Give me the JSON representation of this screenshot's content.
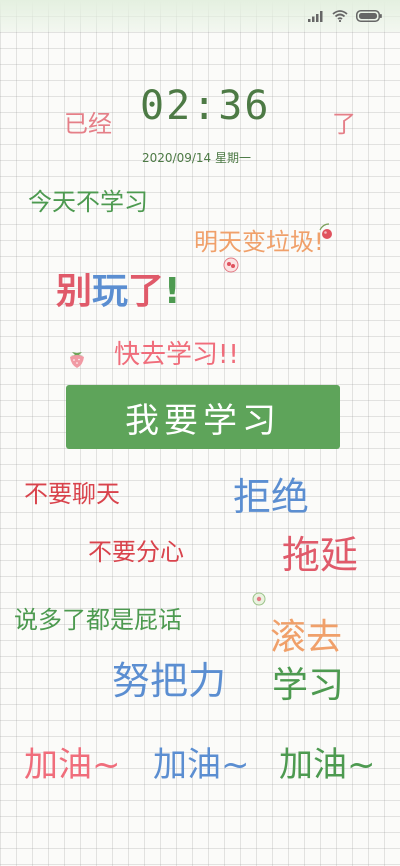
{
  "colors": {
    "green": "#4d9a50",
    "dark_green": "#4d7a45",
    "pink": "#f06d7b",
    "red": "#d9434c",
    "blue": "#5b8ed1",
    "orange": "#f0a06a",
    "banner_bg": "#5ea45a"
  },
  "status_bar": {
    "icons": [
      "signal-icon",
      "wifi-icon",
      "battery-icon"
    ]
  },
  "timer": {
    "prefix": "已经",
    "time": "02:36",
    "suffix": "了",
    "date": "2020/09/14 星期一"
  },
  "phrases": {
    "today_no_study": "今天不学习",
    "tomorrow_trash": "明天变垃圾!",
    "stop_playing": {
      "c1": "别",
      "c2": "玩",
      "c3": "了",
      "c4": "!"
    },
    "go_study": "快去学习!!",
    "banner": "我要学习",
    "no_chatting": "不要聊天",
    "refuse": "拒绝",
    "no_distraction": "不要分心",
    "procrastinate": "拖延",
    "nonsense": "说多了都是屁话",
    "get_lost": "滚去",
    "effort": "努把力",
    "study": "学习",
    "cheer": [
      "加油~",
      "加油~",
      "加油~"
    ]
  }
}
